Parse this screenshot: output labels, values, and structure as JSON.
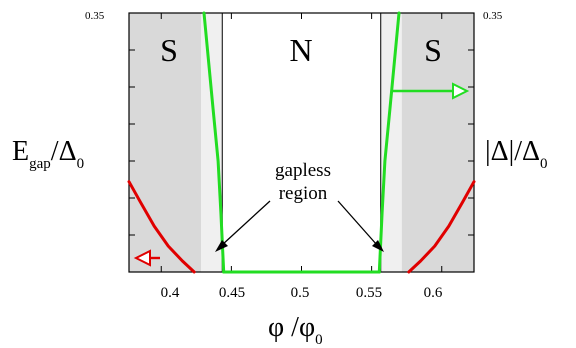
{
  "chart_data": {
    "type": "line",
    "x": {
      "label_main": "φ",
      "label_sep": " /",
      "label_base": "φ",
      "label_sub": "0",
      "range": [
        0.377,
        0.623
      ],
      "ticks": [
        "0.4",
        "0.45",
        "0.5",
        "0.55",
        "0.6"
      ]
    },
    "y_left": {
      "label_main": "E",
      "label_sub": "gap",
      "label_sep": "/",
      "label_base": "Δ",
      "label_base_sub": "0",
      "range": [
        0,
        0.35
      ],
      "top_tick": "0.35"
    },
    "y_right": {
      "label_main": "|Δ|/Δ",
      "label_sub": "0",
      "top_tick": "0.35"
    },
    "regions": [
      {
        "label": "S",
        "x_range": [
          0.377,
          0.4285
        ],
        "color": "#d9d9d9"
      },
      {
        "label": "",
        "x_range": [
          0.4285,
          0.4435
        ],
        "color": "#f0f0f0"
      },
      {
        "label": "N",
        "x_range": [
          0.4435,
          0.5565
        ],
        "color": "#ffffff"
      },
      {
        "label": "",
        "x_range": [
          0.5565,
          0.5715
        ],
        "color": "#f0f0f0"
      },
      {
        "label": "S",
        "x_range": [
          0.5715,
          0.623
        ],
        "color": "#d9d9d9"
      }
    ],
    "series": [
      {
        "color": "#e00000",
        "axis": "left",
        "segments": [
          [
            [
              0.377,
              0.122
            ],
            [
              0.385,
              0.095
            ],
            [
              0.395,
              0.062
            ],
            [
              0.405,
              0.035
            ],
            [
              0.415,
              0.015
            ],
            [
              0.4235,
              0.0
            ]
          ],
          [
            [
              0.5765,
              0.0
            ],
            [
              0.585,
              0.015
            ],
            [
              0.595,
              0.035
            ],
            [
              0.605,
              0.062
            ],
            [
              0.615,
              0.095
            ],
            [
              0.623,
              0.122
            ]
          ]
        ]
      },
      {
        "color": "#22dd22",
        "axis": "right",
        "segments": [
          [
            [
              0.4305,
              0.35
            ],
            [
              0.433,
              0.3
            ],
            [
              0.437,
              0.22
            ],
            [
              0.4405,
              0.15
            ],
            [
              0.4425,
              0.08
            ],
            [
              0.444,
              0.02
            ],
            [
              0.4445,
              0.0
            ]
          ],
          [
            [
              0.4445,
              0.0
            ],
            [
              0.5555,
              0.0
            ]
          ],
          [
            [
              0.5555,
              0.0
            ],
            [
              0.556,
              0.02
            ],
            [
              0.5575,
              0.08
            ],
            [
              0.5595,
              0.15
            ],
            [
              0.563,
              0.22
            ],
            [
              0.567,
              0.3
            ],
            [
              0.5695,
              0.35
            ]
          ]
        ]
      }
    ],
    "annotation": {
      "lines": [
        "gapless",
        "region"
      ]
    },
    "arrows": [
      {
        "color": "#e00000",
        "direction": "left"
      },
      {
        "color": "#22dd22",
        "direction": "right"
      }
    ]
  }
}
